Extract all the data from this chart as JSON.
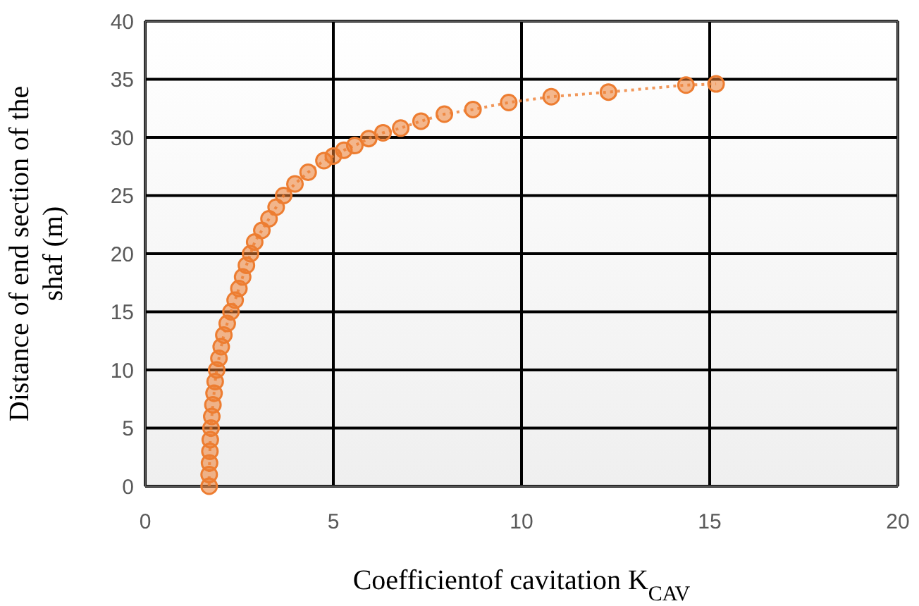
{
  "chart_data": {
    "type": "line",
    "xlabel": "Coefficientof cavitation K$_{CAV}$",
    "ylabel": "Distance of end section of  the\nshaf  (m)",
    "xlim": [
      0,
      20
    ],
    "xticks": [
      0,
      5,
      10,
      15,
      20
    ],
    "ylim": [
      0,
      40
    ],
    "yticks": [
      0,
      5,
      10,
      15,
      20,
      25,
      30,
      35,
      40
    ],
    "grid": true,
    "marker": "circle",
    "line_style": "dotted",
    "series": [
      {
        "color": "#ed7d31",
        "x": [
          1.7,
          1.7,
          1.71,
          1.72,
          1.73,
          1.75,
          1.77,
          1.8,
          1.83,
          1.86,
          1.9,
          1.96,
          2.02,
          2.09,
          2.18,
          2.28,
          2.39,
          2.49,
          2.59,
          2.69,
          2.8,
          2.91,
          3.1,
          3.29,
          3.48,
          3.68,
          3.98,
          4.33,
          4.75,
          5.0,
          5.28,
          5.57,
          5.94,
          6.32,
          6.79,
          7.33,
          7.95,
          8.71,
          9.66,
          10.79,
          12.31,
          14.37,
          15.17
        ],
        "values": [
          0,
          1,
          2,
          3,
          4,
          5,
          6,
          7,
          8,
          9,
          10,
          11,
          12,
          13,
          14,
          15,
          16,
          17,
          18,
          19,
          20,
          21,
          22,
          23,
          24,
          25,
          26,
          27,
          28,
          28.4,
          28.9,
          29.3,
          29.9,
          30.4,
          30.8,
          31.4,
          32.0,
          32.4,
          33.0,
          33.5,
          33.9,
          34.5,
          34.6
        ]
      }
    ]
  }
}
